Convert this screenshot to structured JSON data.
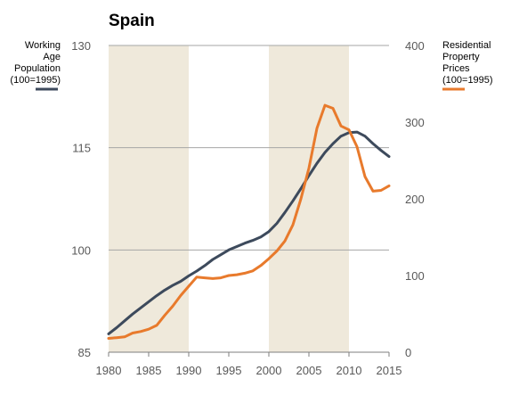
{
  "chart_data": {
    "type": "line",
    "title": "Spain",
    "x": [
      1980,
      1981,
      1982,
      1983,
      1984,
      1985,
      1986,
      1987,
      1988,
      1989,
      1990,
      1991,
      1992,
      1993,
      1994,
      1995,
      1996,
      1997,
      1998,
      1999,
      2000,
      2001,
      2002,
      2003,
      2004,
      2005,
      2006,
      2007,
      2008,
      2009,
      2010,
      2011,
      2012,
      2013,
      2014,
      2015
    ],
    "xlim": [
      1980,
      2015
    ],
    "x_ticks": [
      "1980",
      "1985",
      "1990",
      "1995",
      "2000",
      "2005",
      "2010",
      "2015"
    ],
    "shaded_periods": [
      [
        1980,
        1990
      ],
      [
        2000,
        2010
      ]
    ],
    "axes": {
      "left": {
        "ylim": [
          85,
          130
        ],
        "ticks": [
          "85",
          "100",
          "115",
          "130"
        ]
      },
      "right": {
        "ylim": [
          0,
          400
        ],
        "ticks": [
          "0",
          "100",
          "200",
          "300",
          "400"
        ]
      }
    },
    "series": [
      {
        "name": "Working Age Population (100=1995)",
        "legend_lines": [
          "Working",
          "Age",
          "Population",
          "(100=1995)"
        ],
        "axis": "left",
        "color": "#3d4a5c",
        "values": [
          87.7,
          88.6,
          89.6,
          90.6,
          91.5,
          92.4,
          93.3,
          94.1,
          94.8,
          95.4,
          96.2,
          96.9,
          97.7,
          98.6,
          99.3,
          100.0,
          100.5,
          101.0,
          101.4,
          101.9,
          102.7,
          103.9,
          105.5,
          107.2,
          109.0,
          110.9,
          112.7,
          114.3,
          115.6,
          116.7,
          117.2,
          117.3,
          116.7,
          115.6,
          114.6,
          113.7
        ]
      },
      {
        "name": "Residential Property Prices (100=1995)",
        "legend_lines": [
          "Residential",
          "Property",
          "Prices",
          "(100=1995)"
        ],
        "axis": "right",
        "color": "#e87a2c",
        "values": [
          18,
          19,
          20,
          25,
          27,
          30,
          35,
          48,
          60,
          74,
          86,
          98,
          97,
          96,
          97,
          100,
          101,
          103,
          106,
          113,
          122,
          132,
          145,
          166,
          200,
          240,
          292,
          322,
          318,
          295,
          290,
          268,
          229,
          210,
          211,
          217
        ]
      }
    ]
  }
}
